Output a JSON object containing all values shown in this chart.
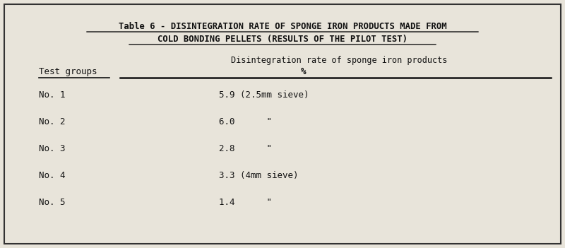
{
  "title_line1": "Table 6 - DISINTEGRATION RATE OF SPONGE IRON PRODUCTS MADE FROM",
  "title_line2": "COLD BONDING PELLETS (RESULTS OF THE PILOT TEST)",
  "col_header_top": "Disintegration rate of sponge iron products",
  "col_header_bottom": "%",
  "col_left_label": "Test groups",
  "rows": [
    {
      "group": "No. 1",
      "value": "5.9 (2.5mm sieve)"
    },
    {
      "group": "No. 2",
      "value": "6.0      \""
    },
    {
      "group": "No. 3",
      "value": "2.8      \""
    },
    {
      "group": "No. 4",
      "value": "3.3 (4mm sieve)"
    },
    {
      "group": "No. 5",
      "value": "1.4      \""
    }
  ],
  "bg_color": "#e8e4da",
  "text_color": "#111111",
  "border_color": "#333333",
  "title_fontsize": 8.8,
  "body_fontsize": 9.0,
  "header_fontsize": 9.0,
  "fig_width": 8.0,
  "fig_height": 3.51,
  "dpi": 100
}
